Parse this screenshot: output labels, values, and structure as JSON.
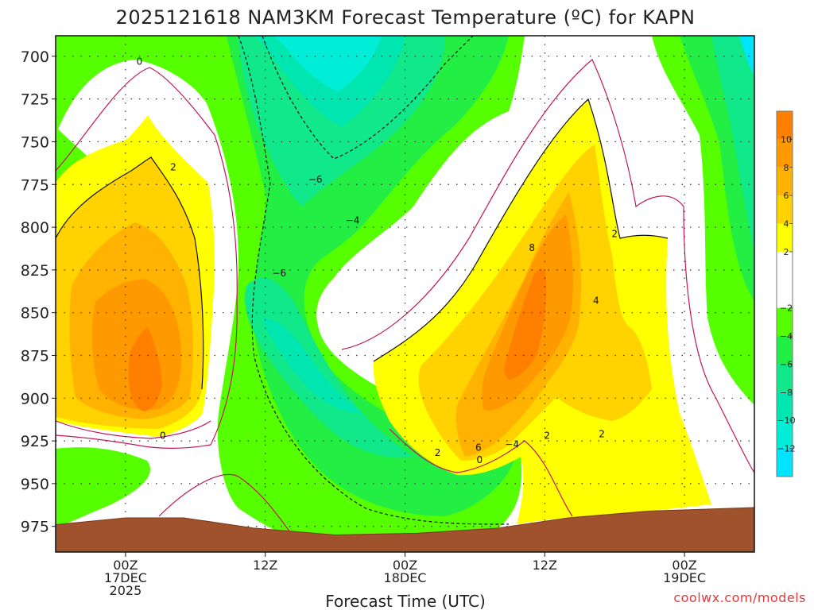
{
  "chart_data": {
    "type": "heatmap",
    "title": "2025121618 NAM3KM Forecast Temperature (ºC) for KAPN",
    "xlabel": "Forecast Time (UTC)",
    "ylabel": "",
    "y_unit": "hPa",
    "y_ticks": [
      "700",
      "725",
      "750",
      "775",
      "800",
      "825",
      "850",
      "875",
      "900",
      "925",
      "950",
      "975"
    ],
    "x_ticks": [
      {
        "hour": 24,
        "lines": [
          "00Z",
          "17DEC",
          "2025"
        ]
      },
      {
        "hour": 36,
        "lines": [
          "12Z"
        ]
      },
      {
        "hour": 48,
        "lines": [
          "00Z",
          "18DEC"
        ]
      },
      {
        "hour": 60,
        "lines": [
          "12Z"
        ]
      },
      {
        "hour": 72,
        "lines": [
          "00Z",
          "19DEC"
        ]
      }
    ],
    "x_range_hours": [
      18,
      78
    ],
    "y_range_hPa": [
      688,
      990
    ],
    "grid": true,
    "colorbar": {
      "position": "right",
      "ticks": [
        "10",
        "8",
        "6",
        "4",
        "2",
        "−2",
        "−4",
        "−6",
        "−8",
        "−10",
        "−12"
      ],
      "bins": [
        {
          "from": 10,
          "to": 12,
          "color": "#ff8000"
        },
        {
          "from": 8,
          "to": 10,
          "color": "#ff9900"
        },
        {
          "from": 6,
          "to": 8,
          "color": "#ffb300"
        },
        {
          "from": 4,
          "to": 6,
          "color": "#ffd200"
        },
        {
          "from": 2,
          "to": 4,
          "color": "#ffff00"
        },
        {
          "from": -2,
          "to": 2,
          "color": "#ffffff"
        },
        {
          "from": -4,
          "to": -2,
          "color": "#55ff00"
        },
        {
          "from": -6,
          "to": -4,
          "color": "#22ee44"
        },
        {
          "from": -8,
          "to": -6,
          "color": "#11e88a"
        },
        {
          "from": -10,
          "to": -8,
          "color": "#00e6b0"
        },
        {
          "from": -12,
          "to": -10,
          "color": "#00eed8"
        },
        {
          "from": -14,
          "to": -12,
          "color": "#00e5ff"
        }
      ]
    },
    "features": [
      {
        "name": "warm core 1",
        "hour": 25,
        "pressure": 880,
        "value": 11
      },
      {
        "name": "warm core 2",
        "hour": 58,
        "pressure": 860,
        "value": 9
      },
      {
        "name": "cold core aloft",
        "hour": 43,
        "pressure": 700,
        "value": -12
      },
      {
        "name": "cold pocket low",
        "hour": 41,
        "pressure": 880,
        "value": -9
      }
    ],
    "contour_labels": [
      {
        "text": "0",
        "hour": 25.2,
        "pressure": 703
      },
      {
        "text": "2",
        "hour": 28.1,
        "pressure": 765
      },
      {
        "text": "−6",
        "hour": 40.3,
        "pressure": 772
      },
      {
        "text": "−4",
        "hour": 43.5,
        "pressure": 796
      },
      {
        "text": "−6",
        "hour": 37.2,
        "pressure": 827
      },
      {
        "text": "0",
        "hour": 27.2,
        "pressure": 922
      },
      {
        "text": "8",
        "hour": 58.9,
        "pressure": 812
      },
      {
        "text": "2",
        "hour": 66.0,
        "pressure": 804
      },
      {
        "text": "4",
        "hour": 64.4,
        "pressure": 843
      },
      {
        "text": "2",
        "hour": 60.2,
        "pressure": 922
      },
      {
        "text": "−4",
        "hour": 57.2,
        "pressure": 927
      },
      {
        "text": "2",
        "hour": 64.9,
        "pressure": 921
      },
      {
        "text": "2",
        "hour": 50.8,
        "pressure": 932
      },
      {
        "text": "6",
        "hour": 54.3,
        "pressure": 929
      },
      {
        "text": "0",
        "hour": 54.4,
        "pressure": 936
      }
    ],
    "surface_pressure": [
      {
        "hour": 18,
        "pressure": 974
      },
      {
        "hour": 24,
        "pressure": 970
      },
      {
        "hour": 29,
        "pressure": 970
      },
      {
        "hour": 35,
        "pressure": 976
      },
      {
        "hour": 42,
        "pressure": 980
      },
      {
        "hour": 49,
        "pressure": 979
      },
      {
        "hour": 56,
        "pressure": 976
      },
      {
        "hour": 62,
        "pressure": 970
      },
      {
        "hour": 69,
        "pressure": 966
      },
      {
        "hour": 78,
        "pressure": 964
      }
    ]
  },
  "credit": "coolwx.com/models"
}
